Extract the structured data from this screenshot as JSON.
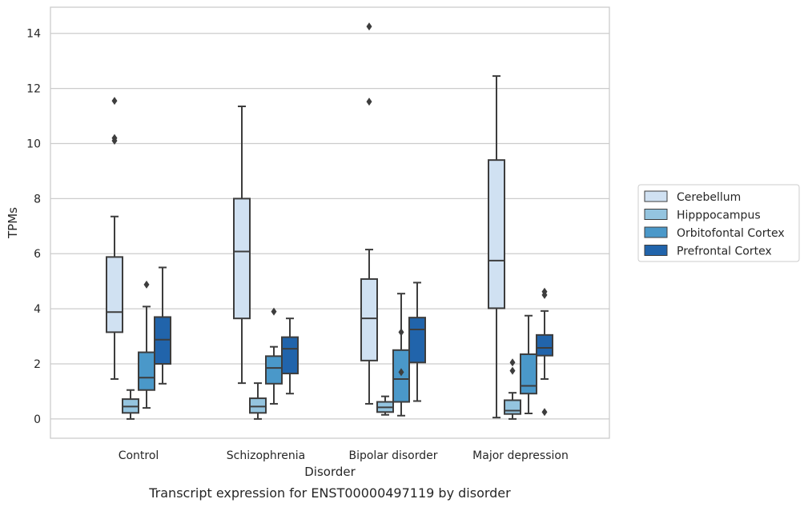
{
  "chart_data": {
    "type": "box",
    "xlabel": "Disorder",
    "ylabel": "TPMs",
    "caption": "Transcript expression for ENST00000497119 by disorder",
    "ylim": [
      -0.7,
      14.95
    ],
    "yticks": [
      0,
      2,
      4,
      6,
      8,
      10,
      12,
      14
    ],
    "grid": "horizontal",
    "legend_position": "right",
    "categories": [
      "Control",
      "Schizophrenia",
      "Bipolar disorder",
      "Major depression"
    ],
    "series": [
      {
        "name": "Cerebellum",
        "color": "#d0e1f2",
        "boxes": [
          {
            "whisker_low": 1.45,
            "q1": 3.15,
            "median": 3.88,
            "q3": 5.88,
            "whisker_high": 7.35,
            "outliers": [
              10.1,
              10.2,
              11.55
            ]
          },
          {
            "whisker_low": 1.3,
            "q1": 3.65,
            "median": 6.08,
            "q3": 8.0,
            "whisker_high": 11.35,
            "outliers": []
          },
          {
            "whisker_low": 0.55,
            "q1": 2.12,
            "median": 3.65,
            "q3": 5.08,
            "whisker_high": 6.15,
            "outliers": [
              11.52,
              14.25
            ]
          },
          {
            "whisker_low": 0.05,
            "q1": 4.02,
            "median": 5.75,
            "q3": 9.4,
            "whisker_high": 12.45,
            "outliers": []
          }
        ]
      },
      {
        "name": "Hipppocampus",
        "color": "#94c4df",
        "boxes": [
          {
            "whisker_low": 0.0,
            "q1": 0.22,
            "median": 0.45,
            "q3": 0.72,
            "whisker_high": 1.05,
            "outliers": []
          },
          {
            "whisker_low": 0.0,
            "q1": 0.22,
            "median": 0.45,
            "q3": 0.75,
            "whisker_high": 1.3,
            "outliers": []
          },
          {
            "whisker_low": 0.15,
            "q1": 0.25,
            "median": 0.42,
            "q3": 0.62,
            "whisker_high": 0.82,
            "outliers": []
          },
          {
            "whisker_low": 0.0,
            "q1": 0.18,
            "median": 0.3,
            "q3": 0.68,
            "whisker_high": 0.95,
            "outliers": [
              1.75,
              2.05
            ]
          }
        ]
      },
      {
        "name": "Orbitofontal Cortex",
        "color": "#4a98c9",
        "boxes": [
          {
            "whisker_low": 0.4,
            "q1": 1.05,
            "median": 1.5,
            "q3": 2.42,
            "whisker_high": 4.08,
            "outliers": [
              4.88
            ]
          },
          {
            "whisker_low": 0.55,
            "q1": 1.28,
            "median": 1.85,
            "q3": 2.28,
            "whisker_high": 2.62,
            "outliers": [
              3.9
            ]
          },
          {
            "whisker_low": 0.12,
            "q1": 0.62,
            "median": 1.45,
            "q3": 2.5,
            "whisker_high": 4.55,
            "outliers": [
              3.15,
              1.7
            ]
          },
          {
            "whisker_low": 0.2,
            "q1": 0.92,
            "median": 1.2,
            "q3": 2.35,
            "whisker_high": 3.75,
            "outliers": []
          }
        ]
      },
      {
        "name": "Prefrontal Cortex",
        "color": "#2164ab",
        "boxes": [
          {
            "whisker_low": 1.28,
            "q1": 2.0,
            "median": 2.88,
            "q3": 3.7,
            "whisker_high": 5.5,
            "outliers": []
          },
          {
            "whisker_low": 0.92,
            "q1": 1.65,
            "median": 2.55,
            "q3": 2.97,
            "whisker_high": 3.65,
            "outliers": []
          },
          {
            "whisker_low": 0.65,
            "q1": 2.05,
            "median": 3.25,
            "q3": 3.68,
            "whisker_high": 4.95,
            "outliers": []
          },
          {
            "whisker_low": 1.45,
            "q1": 2.3,
            "median": 2.58,
            "q3": 3.05,
            "whisker_high": 3.92,
            "outliers": [
              4.5,
              4.62,
              0.25
            ]
          }
        ]
      }
    ]
  }
}
